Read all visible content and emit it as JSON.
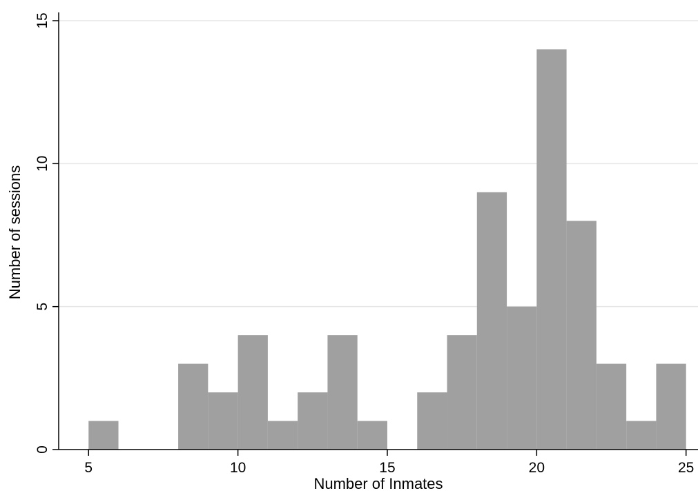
{
  "chart_data": {
    "type": "bar",
    "subtype": "histogram",
    "title": "",
    "xlabel": "Number of Inmates",
    "ylabel": "Number of sessions",
    "xlim": [
      4,
      25.4
    ],
    "ylim": [
      0,
      15
    ],
    "x_ticks": [
      5,
      10,
      15,
      20,
      25
    ],
    "y_ticks": [
      0,
      5,
      10,
      15
    ],
    "grid": "horizontal",
    "bar_color": "#a0a0a0",
    "bins": [
      {
        "x0": 5,
        "x1": 6,
        "count": 1
      },
      {
        "x0": 6,
        "x1": 7,
        "count": 0
      },
      {
        "x0": 7,
        "x1": 8,
        "count": 0
      },
      {
        "x0": 8,
        "x1": 9,
        "count": 3
      },
      {
        "x0": 9,
        "x1": 10,
        "count": 2
      },
      {
        "x0": 10,
        "x1": 11,
        "count": 4
      },
      {
        "x0": 11,
        "x1": 12,
        "count": 1
      },
      {
        "x0": 12,
        "x1": 13,
        "count": 2
      },
      {
        "x0": 13,
        "x1": 14,
        "count": 4
      },
      {
        "x0": 14,
        "x1": 15,
        "count": 1
      },
      {
        "x0": 15,
        "x1": 16,
        "count": 0
      },
      {
        "x0": 16,
        "x1": 17,
        "count": 2
      },
      {
        "x0": 17,
        "x1": 18,
        "count": 4
      },
      {
        "x0": 18,
        "x1": 19,
        "count": 9
      },
      {
        "x0": 19,
        "x1": 20,
        "count": 5
      },
      {
        "x0": 20,
        "x1": 21,
        "count": 14
      },
      {
        "x0": 21,
        "x1": 22,
        "count": 8
      },
      {
        "x0": 22,
        "x1": 23,
        "count": 3
      },
      {
        "x0": 23,
        "x1": 24,
        "count": 1
      },
      {
        "x0": 24,
        "x1": 25,
        "count": 3
      }
    ]
  }
}
